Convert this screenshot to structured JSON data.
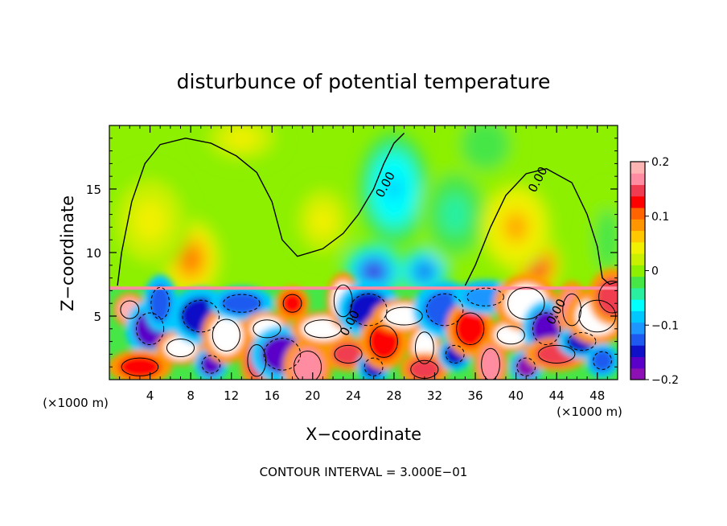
{
  "chart_data": {
    "type": "heatmap",
    "title": "disturbunce of potential temperature",
    "xlabel": "X−coordinate",
    "ylabel": "Z−coordinate",
    "x_unit_label": "(×1000 m)",
    "y_unit_label": "(×1000 m)",
    "x_range": [
      0,
      50
    ],
    "y_range": [
      0,
      20
    ],
    "x_ticks": [
      4,
      8,
      12,
      16,
      20,
      24,
      28,
      32,
      36,
      40,
      44,
      48
    ],
    "x_tick_labels": [
      "4",
      "8",
      "12",
      "16",
      "20",
      "24",
      "28",
      "32",
      "36",
      "40",
      "44",
      "48"
    ],
    "y_ticks": [
      5,
      10,
      15
    ],
    "y_tick_labels": [
      "5",
      "10",
      "15"
    ],
    "footer": "CONTOUR INTERVAL = 3.000E−01",
    "colorbar": {
      "range": [
        -0.2,
        0.2
      ],
      "tick_values": [
        0.2,
        0.1,
        0,
        -0.1,
        -0.2
      ],
      "tick_labels": [
        "0.2",
        "0.1",
        "0",
        "−0.1",
        "−0.2"
      ],
      "colors": [
        "#8c10b4",
        "#5a00c8",
        "#1010c8",
        "#1e5af0",
        "#1e96ff",
        "#00c8ff",
        "#00ffff",
        "#28f0a0",
        "#46e646",
        "#8cf000",
        "#c8f000",
        "#f0f000",
        "#ffc800",
        "#ff9600",
        "#ff6400",
        "#ff0000",
        "#f03c50",
        "#ff8ca0",
        "#ffb4b4"
      ]
    },
    "contour_labels": [
      {
        "text": "0.00",
        "x": 27.5,
        "y": 15.2
      },
      {
        "text": "0.00",
        "x": 42.5,
        "y": 15.6
      },
      {
        "text": "0.00",
        "x": 24.0,
        "y": 4.3
      },
      {
        "text": "0.00",
        "x": 44.3,
        "y": 5.2
      }
    ],
    "inversion_height": 7.2,
    "upper_features": [
      {
        "x": 8,
        "z": 9.5,
        "value": 0.1,
        "sx": 3.0,
        "sz": 3.2
      },
      {
        "x": 4,
        "z": 12.5,
        "value": 0.05,
        "sx": 4.0,
        "sz": 4.0
      },
      {
        "x": 13,
        "z": 19.0,
        "value": 0.05,
        "sx": 4.0,
        "sz": 2.0
      },
      {
        "x": 21,
        "z": 12.5,
        "value": 0.04,
        "sx": 3.0,
        "sz": 3.0
      },
      {
        "x": 26,
        "z": 8.5,
        "value": -0.16,
        "sx": 3.0,
        "sz": 2.2
      },
      {
        "x": 31,
        "z": 8.5,
        "value": -0.14,
        "sx": 2.5,
        "sz": 2.0
      },
      {
        "x": 28,
        "z": 15.0,
        "value": -0.09,
        "sx": 3.5,
        "sz": 4.5
      },
      {
        "x": 34,
        "z": 13.0,
        "value": -0.05,
        "sx": 3.5,
        "sz": 4.0
      },
      {
        "x": 42,
        "z": 9.0,
        "value": 0.15,
        "sx": 2.5,
        "sz": 2.5
      },
      {
        "x": 40,
        "z": 12.0,
        "value": 0.08,
        "sx": 3.5,
        "sz": 3.5
      },
      {
        "x": 37,
        "z": 18.5,
        "value": -0.03,
        "sx": 3.0,
        "sz": 2.5
      },
      {
        "x": 49,
        "z": 11.0,
        "value": -0.02,
        "sx": 2.0,
        "sz": 4.0
      }
    ],
    "lower_features": [
      {
        "x": 2,
        "z": 5.5,
        "value": 0.18
      },
      {
        "x": 4,
        "z": 4.0,
        "value": -0.16
      },
      {
        "x": 3,
        "z": 1.0,
        "value": 0.12
      },
      {
        "x": 5,
        "z": 6.0,
        "value": -0.12
      },
      {
        "x": 7,
        "z": 2.5,
        "value": 0.3
      },
      {
        "x": 9,
        "z": 5.0,
        "value": -0.15
      },
      {
        "x": 10,
        "z": 1.2,
        "value": -0.17
      },
      {
        "x": 11.5,
        "z": 3.5,
        "value": 0.3
      },
      {
        "x": 13,
        "z": 6.0,
        "value": -0.12
      },
      {
        "x": 14.5,
        "z": 1.5,
        "value": 0.15
      },
      {
        "x": 15.5,
        "z": 4.0,
        "value": 0.3
      },
      {
        "x": 17,
        "z": 2.0,
        "value": -0.16
      },
      {
        "x": 18,
        "z": 6.0,
        "value": 0.13
      },
      {
        "x": 19.5,
        "z": 1.0,
        "value": 0.17
      },
      {
        "x": 21,
        "z": 4.0,
        "value": 0.3
      },
      {
        "x": 23,
        "z": 6.2,
        "value": 0.3
      },
      {
        "x": 23.5,
        "z": 2.0,
        "value": 0.14
      },
      {
        "x": 25.5,
        "z": 5.5,
        "value": -0.14
      },
      {
        "x": 26,
        "z": 1.0,
        "value": -0.15
      },
      {
        "x": 27,
        "z": 3.0,
        "value": 0.12
      },
      {
        "x": 29,
        "z": 5.0,
        "value": 0.3
      },
      {
        "x": 31,
        "z": 2.5,
        "value": 0.3
      },
      {
        "x": 31,
        "z": 0.8,
        "value": 0.14
      },
      {
        "x": 33,
        "z": 5.5,
        "value": -0.12
      },
      {
        "x": 34,
        "z": 2.0,
        "value": -0.15
      },
      {
        "x": 35.5,
        "z": 4.0,
        "value": 0.13
      },
      {
        "x": 37,
        "z": 6.5,
        "value": -0.11
      },
      {
        "x": 37.5,
        "z": 1.2,
        "value": 0.16
      },
      {
        "x": 39.5,
        "z": 3.5,
        "value": 0.3
      },
      {
        "x": 41,
        "z": 6.0,
        "value": 0.3
      },
      {
        "x": 41,
        "z": 1.0,
        "value": -0.18
      },
      {
        "x": 43,
        "z": 4.0,
        "value": -0.16
      },
      {
        "x": 44,
        "z": 2.0,
        "value": 0.14
      },
      {
        "x": 45.5,
        "z": 5.5,
        "value": 0.17
      },
      {
        "x": 46.5,
        "z": 3.0,
        "value": -0.14
      },
      {
        "x": 48,
        "z": 5.0,
        "value": 0.3
      },
      {
        "x": 48.5,
        "z": 1.5,
        "value": -0.12
      },
      {
        "x": 49.5,
        "z": 6.5,
        "value": 0.15
      }
    ]
  }
}
